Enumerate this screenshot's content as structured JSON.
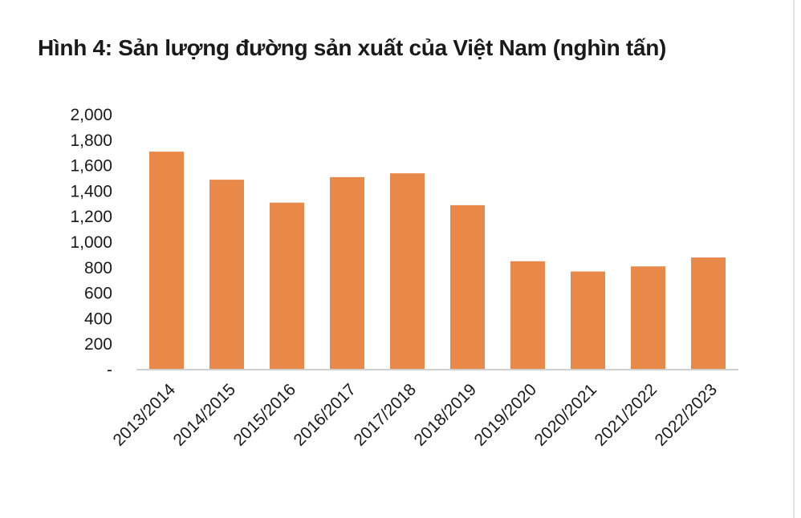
{
  "chart_data": {
    "type": "bar",
    "title": "Hình 4: Sản lượng đường sản xuất của Việt Nam (nghìn tấn)",
    "categories": [
      "2013/2014",
      "2014/2015",
      "2015/2016",
      "2016/2017",
      "2017/2018",
      "2018/2019",
      "2019/2020",
      "2020/2021",
      "2021/2022",
      "2022/2023"
    ],
    "values": [
      1710,
      1490,
      1310,
      1510,
      1540,
      1290,
      850,
      770,
      810,
      880
    ],
    "ylim": [
      0,
      2000
    ],
    "yticks": [
      0,
      200,
      400,
      600,
      800,
      1000,
      1200,
      1400,
      1600,
      1800,
      2000
    ],
    "ytick_labels": [
      "-",
      "200",
      "400",
      "600",
      "800",
      "1,000",
      "1,200",
      "1,400",
      "1,600",
      "1,800",
      "2,000"
    ],
    "bar_color": "#e8894a",
    "grid": false,
    "legend": "none"
  }
}
